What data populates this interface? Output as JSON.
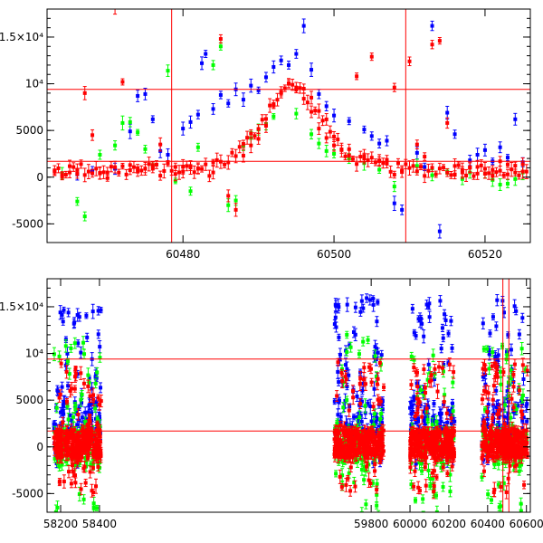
{
  "chart_data": [
    {
      "type": "scatter",
      "title": "",
      "xlabel": "",
      "ylabel": "",
      "xlim": [
        60462,
        60526
      ],
      "ylim": [
        -7000,
        18000
      ],
      "grid": false,
      "x_ticks": [
        "60480",
        "60500",
        "60520"
      ],
      "x_tick_values": [
        60480,
        60500,
        60520
      ],
      "y_ticks": [
        "-5000",
        "0",
        "5000",
        "10⁴",
        "1.5×10⁴"
      ],
      "y_tick_values": [
        -5000,
        0,
        5000,
        10000,
        15000
      ],
      "hlines": [
        9400,
        1700
      ],
      "vlines": [
        60478.5,
        60509.5
      ],
      "colors": {
        "red": "#ff0000",
        "blue": "#0000ff",
        "green": "#00ff00",
        "axis": "#000000"
      },
      "series": [
        {
          "color": "blue",
          "points": [
            [
              60466,
              300
            ],
            [
              60468,
              700
            ],
            [
              60471,
              900
            ],
            [
              60473,
              4900
            ],
            [
              60474,
              8700
            ],
            [
              60475,
              8900
            ],
            [
              60476,
              6200
            ],
            [
              60477,
              2800
            ],
            [
              60478,
              2400
            ],
            [
              60480,
              5200
            ],
            [
              60481,
              5900
            ],
            [
              60482,
              6700
            ],
            [
              60482.5,
              12200
            ],
            [
              60483,
              13200
            ],
            [
              60484,
              7300
            ],
            [
              60485,
              8800
            ],
            [
              60486,
              7900
            ],
            [
              60487,
              9400
            ],
            [
              60488,
              8300
            ],
            [
              60489,
              9800
            ],
            [
              60490,
              9300
            ],
            [
              60491,
              10700
            ],
            [
              60492,
              11800
            ],
            [
              60493,
              12500
            ],
            [
              60494,
              12000
            ],
            [
              60495,
              13200
            ],
            [
              60496,
              16200
            ],
            [
              60497,
              11500
            ],
            [
              60498,
              8900
            ],
            [
              60499,
              7600
            ],
            [
              60500,
              6600
            ],
            [
              60502,
              6000
            ],
            [
              60504,
              5100
            ],
            [
              60505,
              4400
            ],
            [
              60506,
              3600
            ],
            [
              60507,
              3900
            ],
            [
              60508,
              -2800
            ],
            [
              60509,
              -3500
            ],
            [
              60511,
              2600
            ],
            [
              60512,
              1100
            ],
            [
              60513,
              16200
            ],
            [
              60514,
              -5800
            ],
            [
              60515,
              6900
            ],
            [
              60516,
              4600
            ],
            [
              60518,
              1800
            ],
            [
              60519,
              2400
            ],
            [
              60520,
              2900
            ],
            [
              60521,
              1700
            ],
            [
              60522,
              3200
            ],
            [
              60523,
              2100
            ],
            [
              60524,
              6200
            ],
            [
              60525,
              1600
            ]
          ]
        },
        {
          "color": "green",
          "points": [
            [
              60464,
              400
            ],
            [
              60466,
              -2600
            ],
            [
              60467,
              -4200
            ],
            [
              60469,
              2400
            ],
            [
              60471,
              3400
            ],
            [
              60472,
              5800
            ],
            [
              60473,
              5900
            ],
            [
              60474,
              4800
            ],
            [
              60475,
              3000
            ],
            [
              60476,
              1300
            ],
            [
              60478,
              11400
            ],
            [
              60479,
              -400
            ],
            [
              60481,
              -1500
            ],
            [
              60482,
              3200
            ],
            [
              60484,
              12000
            ],
            [
              60485,
              14000
            ],
            [
              60486,
              -3000
            ],
            [
              60487,
              -2500
            ],
            [
              60488,
              3400
            ],
            [
              60489,
              4200
            ],
            [
              60490,
              5100
            ],
            [
              60491,
              5700
            ],
            [
              60492,
              6500
            ],
            [
              60495,
              6800
            ],
            [
              60497,
              4600
            ],
            [
              60498,
              3600
            ],
            [
              60499,
              2800
            ],
            [
              60500,
              2500
            ],
            [
              60502,
              2000
            ],
            [
              60504,
              1500
            ],
            [
              60506,
              800
            ],
            [
              60508,
              -1000
            ],
            [
              60511,
              1200
            ],
            [
              60513,
              200
            ],
            [
              60515,
              600
            ],
            [
              60517,
              -200
            ],
            [
              60518,
              500
            ],
            [
              60520,
              400
            ],
            [
              60521,
              -300
            ],
            [
              60522,
              -800
            ],
            [
              60523,
              -700
            ],
            [
              60524,
              -200
            ],
            [
              60525,
              500
            ]
          ]
        },
        {
          "color": "red",
          "points": [
            [
              60463,
              700
            ],
            [
              60464,
              100
            ],
            [
              60465,
              500
            ],
            [
              60466,
              800
            ],
            [
              60467,
              9000
            ],
            [
              60468,
              4500
            ],
            [
              60469,
              400
            ],
            [
              60470,
              -100
            ],
            [
              60471,
              18200
            ],
            [
              60472,
              10200
            ],
            [
              60473,
              1300
            ],
            [
              60474,
              600
            ],
            [
              60475,
              900
            ],
            [
              60476,
              1200
            ],
            [
              60477,
              3500
            ],
            [
              60479,
              1100
            ],
            [
              60480,
              600
            ],
            [
              60481,
              1200
            ],
            [
              60482,
              900
            ],
            [
              60484,
              1600
            ],
            [
              60485,
              14800
            ],
            [
              60486,
              -2000
            ],
            [
              60487,
              -3500
            ],
            [
              60488,
              2300
            ],
            [
              60489,
              3400
            ],
            [
              60490,
              4100
            ],
            [
              60491,
              5500
            ],
            [
              60492,
              7800
            ],
            [
              60493,
              9000
            ],
            [
              60494,
              10000
            ],
            [
              60495,
              9600
            ],
            [
              60496,
              8400
            ],
            [
              60497,
              7000
            ],
            [
              60498,
              5200
            ],
            [
              60499,
              4200
            ],
            [
              60500,
              3400
            ],
            [
              60501,
              2900
            ],
            [
              60502,
              2300
            ],
            [
              60503,
              10800
            ],
            [
              60504,
              2000
            ],
            [
              60505,
              12900
            ],
            [
              60506,
              1800
            ],
            [
              60507,
              1500
            ],
            [
              60508,
              9600
            ],
            [
              60509,
              600
            ],
            [
              60510,
              12400
            ],
            [
              60511,
              3500
            ],
            [
              60512,
              2200
            ],
            [
              60513,
              14200
            ],
            [
              60514,
              14600
            ],
            [
              60515,
              5800
            ],
            [
              60516,
              1200
            ],
            [
              60517,
              500
            ],
            [
              60518,
              1000
            ],
            [
              60519,
              1100
            ],
            [
              60520,
              900
            ],
            [
              60521,
              800
            ],
            [
              60522,
              1700
            ],
            [
              60523,
              300
            ],
            [
              60524,
              500
            ],
            [
              60525,
              600
            ]
          ]
        }
      ]
    },
    {
      "type": "scatter",
      "title": "",
      "xlabel": "",
      "ylabel": "",
      "xlim": [
        58130,
        60620
      ],
      "ylim": [
        -7000,
        18000
      ],
      "grid": false,
      "x_ticks": [
        "58200",
        "58400",
        "59800",
        "60000",
        "60200",
        "60400",
        "60600"
      ],
      "x_tick_values": [
        58200,
        58400,
        59800,
        60000,
        60200,
        60400,
        60600
      ],
      "y_ticks": [
        "-5000",
        "0",
        "5000",
        "10⁴",
        "1.5×10⁴"
      ],
      "y_tick_values": [
        -5000,
        0,
        5000,
        10000,
        15000
      ],
      "hlines": [
        9400,
        1700
      ],
      "vlines": [
        60478.5,
        60509.5
      ],
      "segments": [
        {
          "range": [
            58150,
            58420
          ],
          "x_start": 58150
        },
        {
          "range": [
            59600,
            59880
          ],
          "x_start": 59600
        },
        {
          "range": [
            59900,
            60250
          ],
          "x_start": 59900
        },
        {
          "range": [
            60350,
            60620
          ],
          "x_start": 60350
        }
      ],
      "colors": {
        "red": "#ff0000",
        "blue": "#0000ff",
        "green": "#00ff00",
        "axis": "#000000"
      },
      "clusters": [
        {
          "range": [
            58165,
            58410
          ],
          "series": [
            "blue",
            "green",
            "red"
          ]
        },
        {
          "range": [
            59610,
            59865
          ],
          "series": [
            "blue",
            "green",
            "red"
          ]
        },
        {
          "range": [
            60000,
            60230
          ],
          "series": [
            "blue",
            "green",
            "red"
          ]
        },
        {
          "range": [
            60370,
            60605
          ],
          "series": [
            "blue",
            "green",
            "red"
          ]
        }
      ]
    }
  ]
}
